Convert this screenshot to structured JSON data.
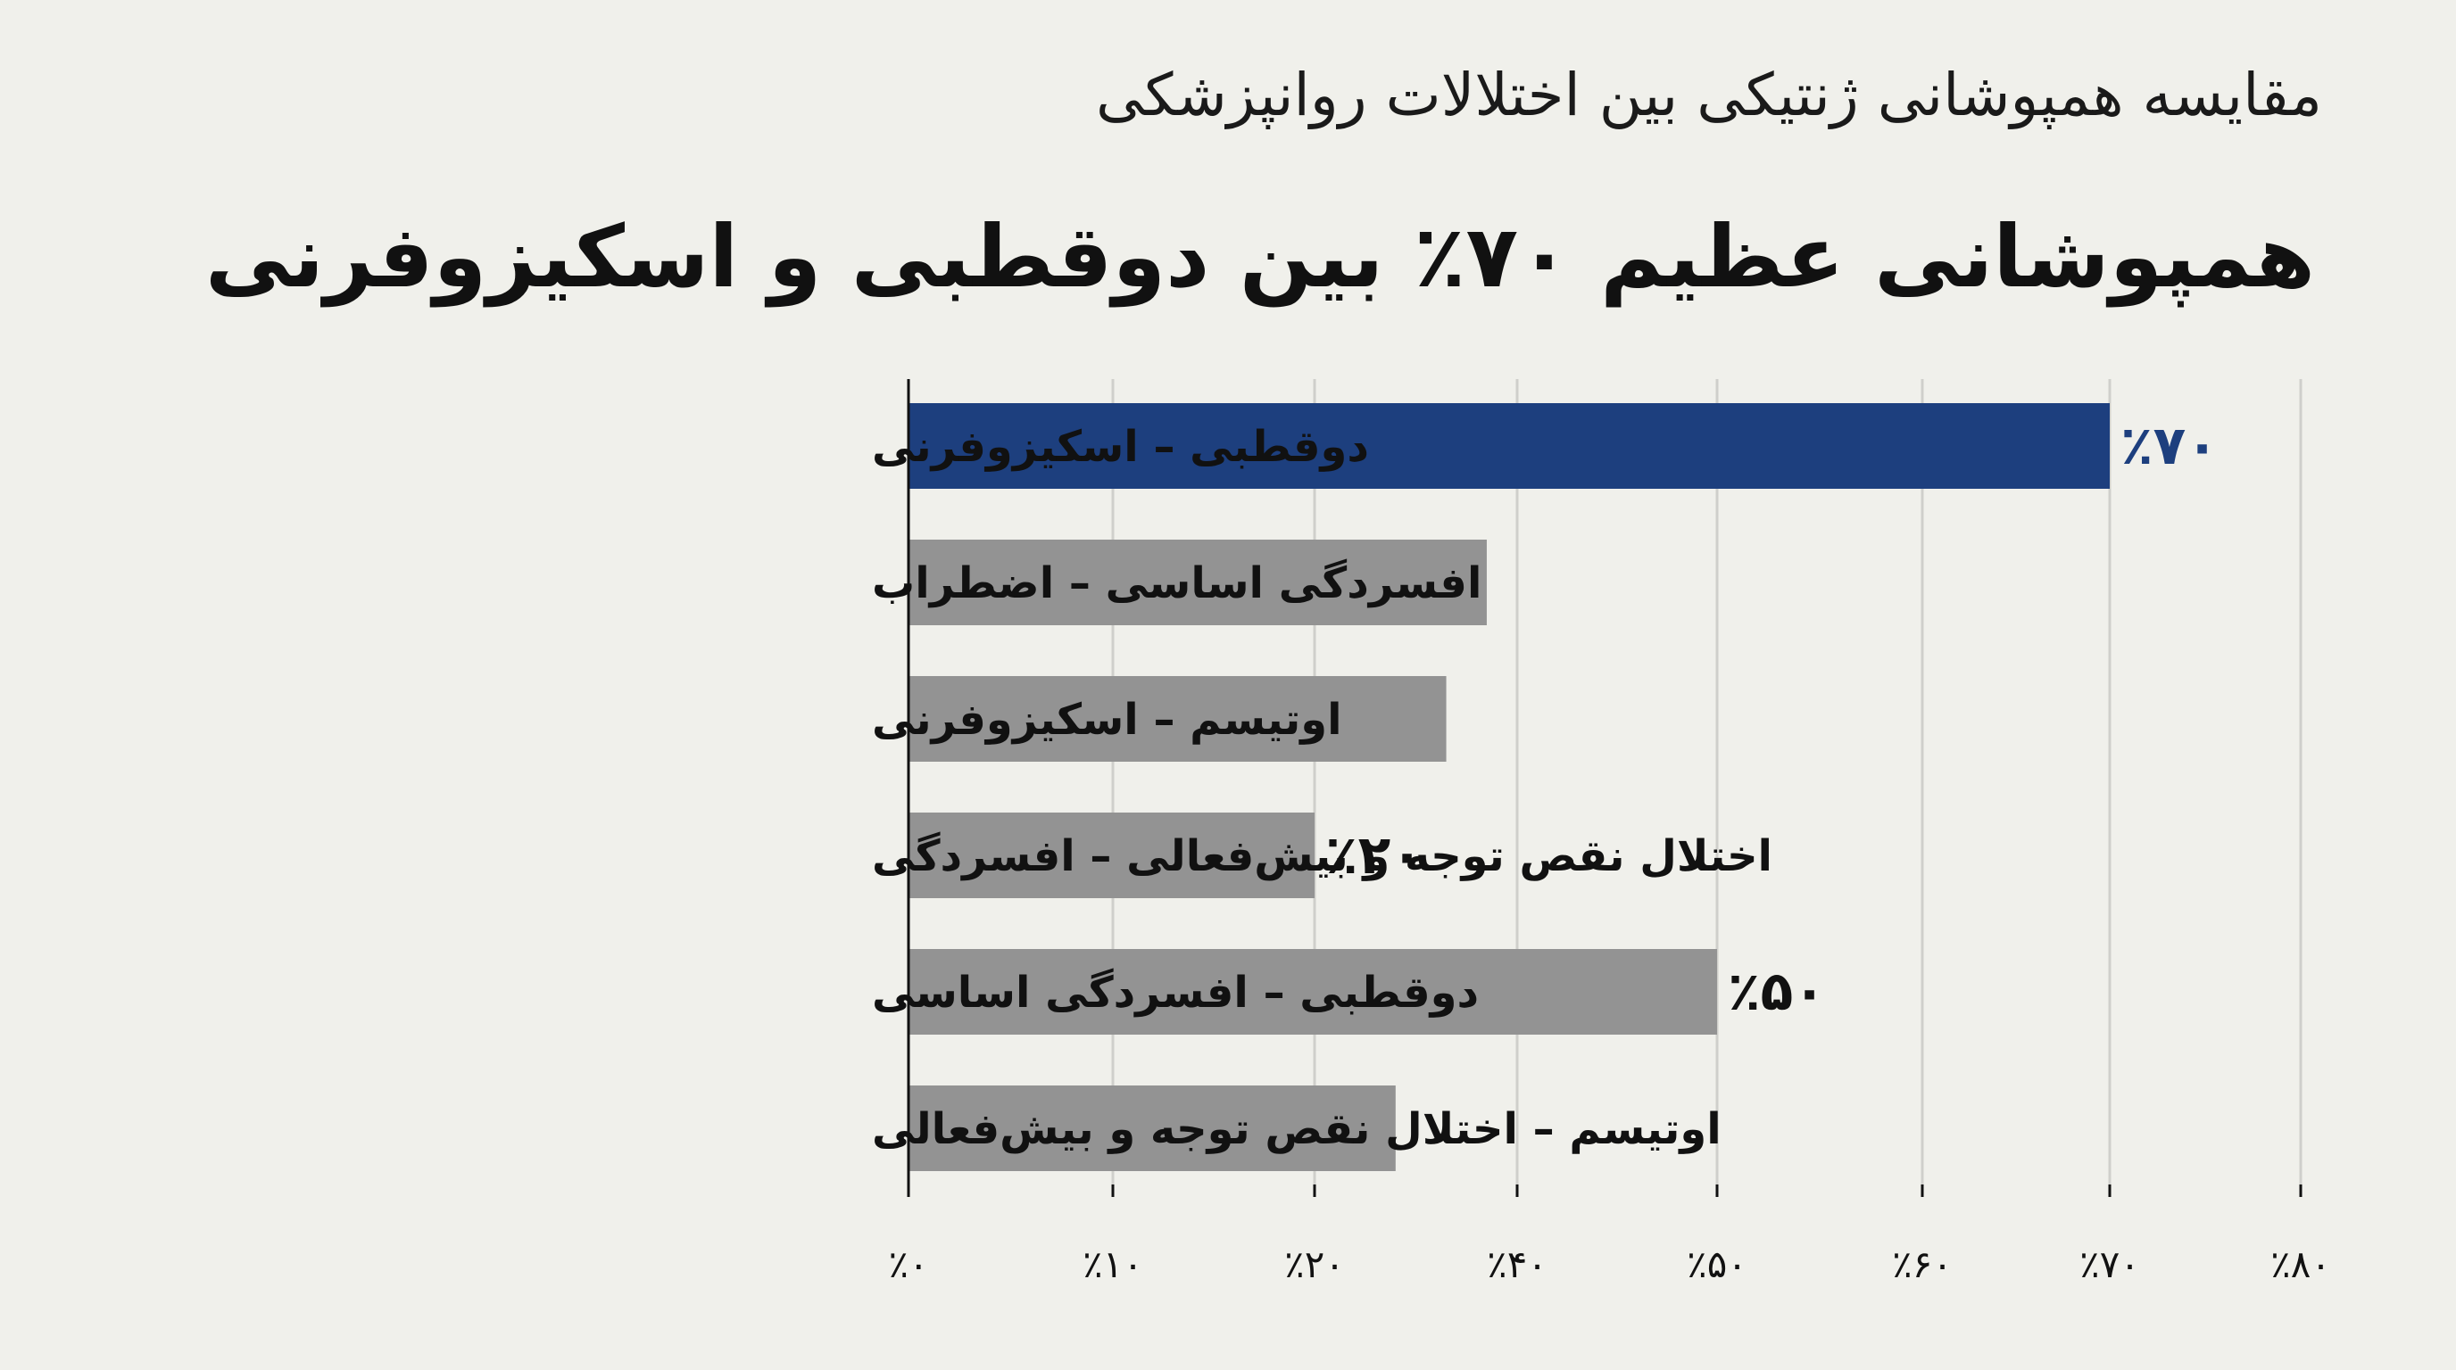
{
  "subtitle": "مقایسه همپوشانی ژنتیکی بین اختلالات روانپزشکی",
  "title": "همپوشانی عظیم ۷۰٪ بین دوقطبی و اسکیزوفرنی",
  "colors": {
    "highlight": "#1d3f7e",
    "default": "#939393",
    "grid": "#cfcfcb",
    "axis": "#111111",
    "background": "#f0f0eb"
  },
  "chart_data": {
    "type": "bar",
    "orientation": "horizontal",
    "categories": [
      "دوقطبی – اسکیزوفرنی",
      "افسردگی اساسی – اضطراب",
      "اوتیسم – اسکیزوفرنی",
      "اختلال نقص توجه و بیش‌فعالی – افسردگی",
      "دوقطبی – افسردگی اساسی",
      "اوتیسم – اختلال نقص توجه و بیش‌فعالی"
    ],
    "values": [
      70,
      37,
      33,
      20,
      50,
      28
    ],
    "value_labels": [
      "٪۷۰",
      "",
      "",
      "٪۲۰",
      "٪۵۰",
      ""
    ],
    "highlight_index": 0,
    "ticks": [
      {
        "value": 0,
        "label": "٪۰"
      },
      {
        "value": 10,
        "label": "٪۱۰"
      },
      {
        "value": 20,
        "label": "٪۲۰"
      },
      {
        "value": 40,
        "label": "٪۴۰"
      },
      {
        "value": 50,
        "label": "٪۵۰"
      },
      {
        "value": 60,
        "label": "٪۶۰"
      },
      {
        "value": 70,
        "label": "٪۷۰"
      },
      {
        "value": 80,
        "label": "٪۸۰"
      }
    ],
    "xlim": [
      0,
      80
    ],
    "grid": true
  }
}
